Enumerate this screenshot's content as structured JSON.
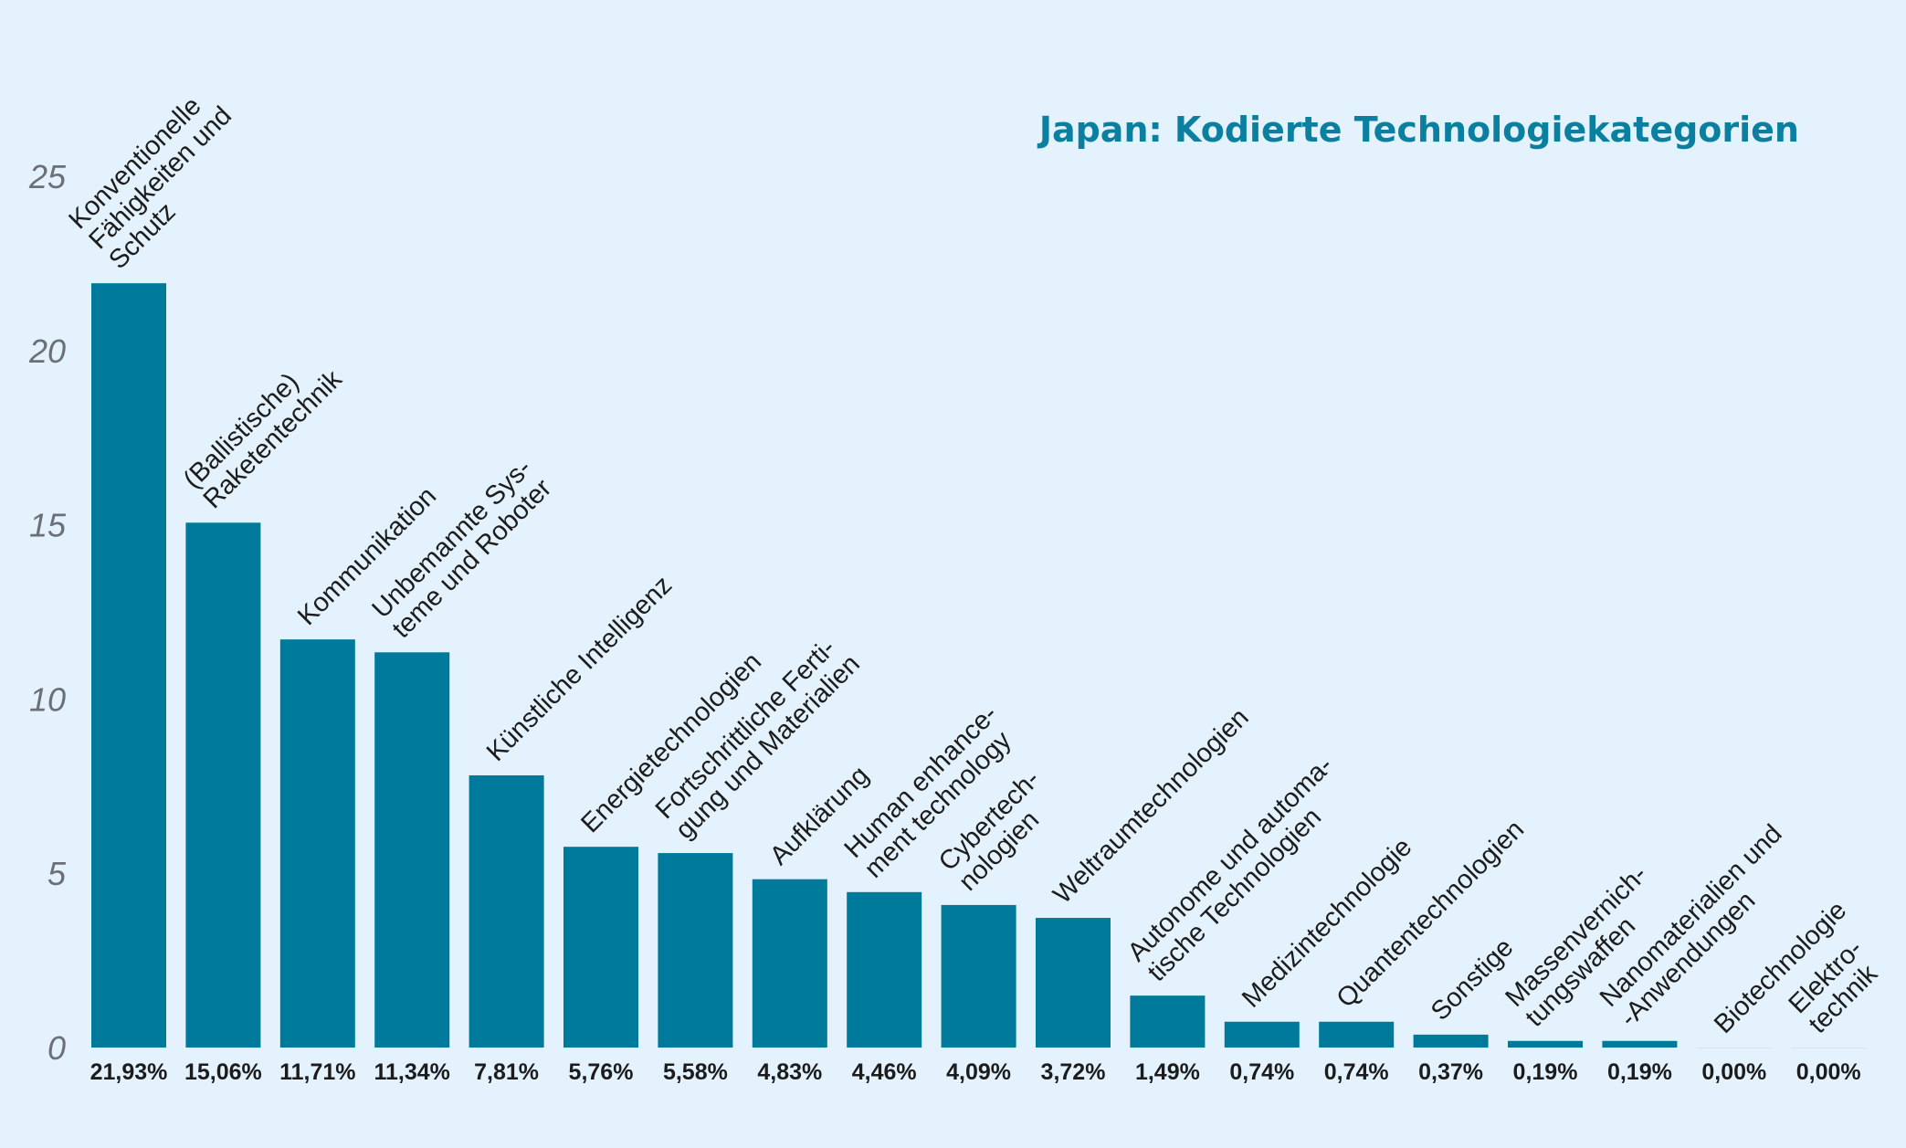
{
  "chart_data": {
    "type": "bar",
    "title": "Japan: Kodierte Technologiekategorien",
    "xlabel": "",
    "ylabel": "",
    "ylim": [
      0,
      25
    ],
    "yticks": [
      "0",
      "5",
      "10",
      "15",
      "20",
      "25"
    ],
    "grid": false,
    "categories": [
      [
        "Konventionelle",
        "Fähigkeiten und",
        "Schutz"
      ],
      [
        "(Ballistische)",
        "Raketentechnik"
      ],
      [
        "Kommunikation"
      ],
      [
        "Unbemannte Sys-",
        "teme und Roboter"
      ],
      [
        "Künstliche Intelligenz"
      ],
      [
        "Energietechnologien"
      ],
      [
        "Fortschrittliche Ferti-",
        "gung und Materialien"
      ],
      [
        "Aufklärung"
      ],
      [
        "Human enhance-",
        "ment technology"
      ],
      [
        "Cybertech-",
        "nologien"
      ],
      [
        "Weltraumtechnologien"
      ],
      [
        "Autonome und automa-",
        "tische Technologien"
      ],
      [
        "Medizintechnologie"
      ],
      [
        "Quantentechnologien"
      ],
      [
        "Sonstige"
      ],
      [
        "Massenvernich-",
        "tungswaffen"
      ],
      [
        "Nanomaterialien und",
        "-Anwendungen"
      ],
      [
        "Biotechnologie"
      ],
      [
        "Elektro-",
        "technik"
      ]
    ],
    "values": [
      21.93,
      15.06,
      11.71,
      11.34,
      7.81,
      5.76,
      5.58,
      4.83,
      4.46,
      4.09,
      3.72,
      1.49,
      0.74,
      0.74,
      0.37,
      0.19,
      0.19,
      0.0,
      0.0
    ],
    "value_labels": [
      "21,93%",
      "15,06%",
      "11,71%",
      "11,34%",
      "7,81%",
      "5,76%",
      "5,58%",
      "4,83%",
      "4,46%",
      "4,09%",
      "3,72%",
      "1,49%",
      "0,74%",
      "0,74%",
      "0,37%",
      "0,19%",
      "0,19%",
      "0,00%",
      "0,00%"
    ],
    "colors": {
      "bar": "#007a9a",
      "title": "#0a7fa0",
      "background": "#e3f2fc"
    }
  }
}
